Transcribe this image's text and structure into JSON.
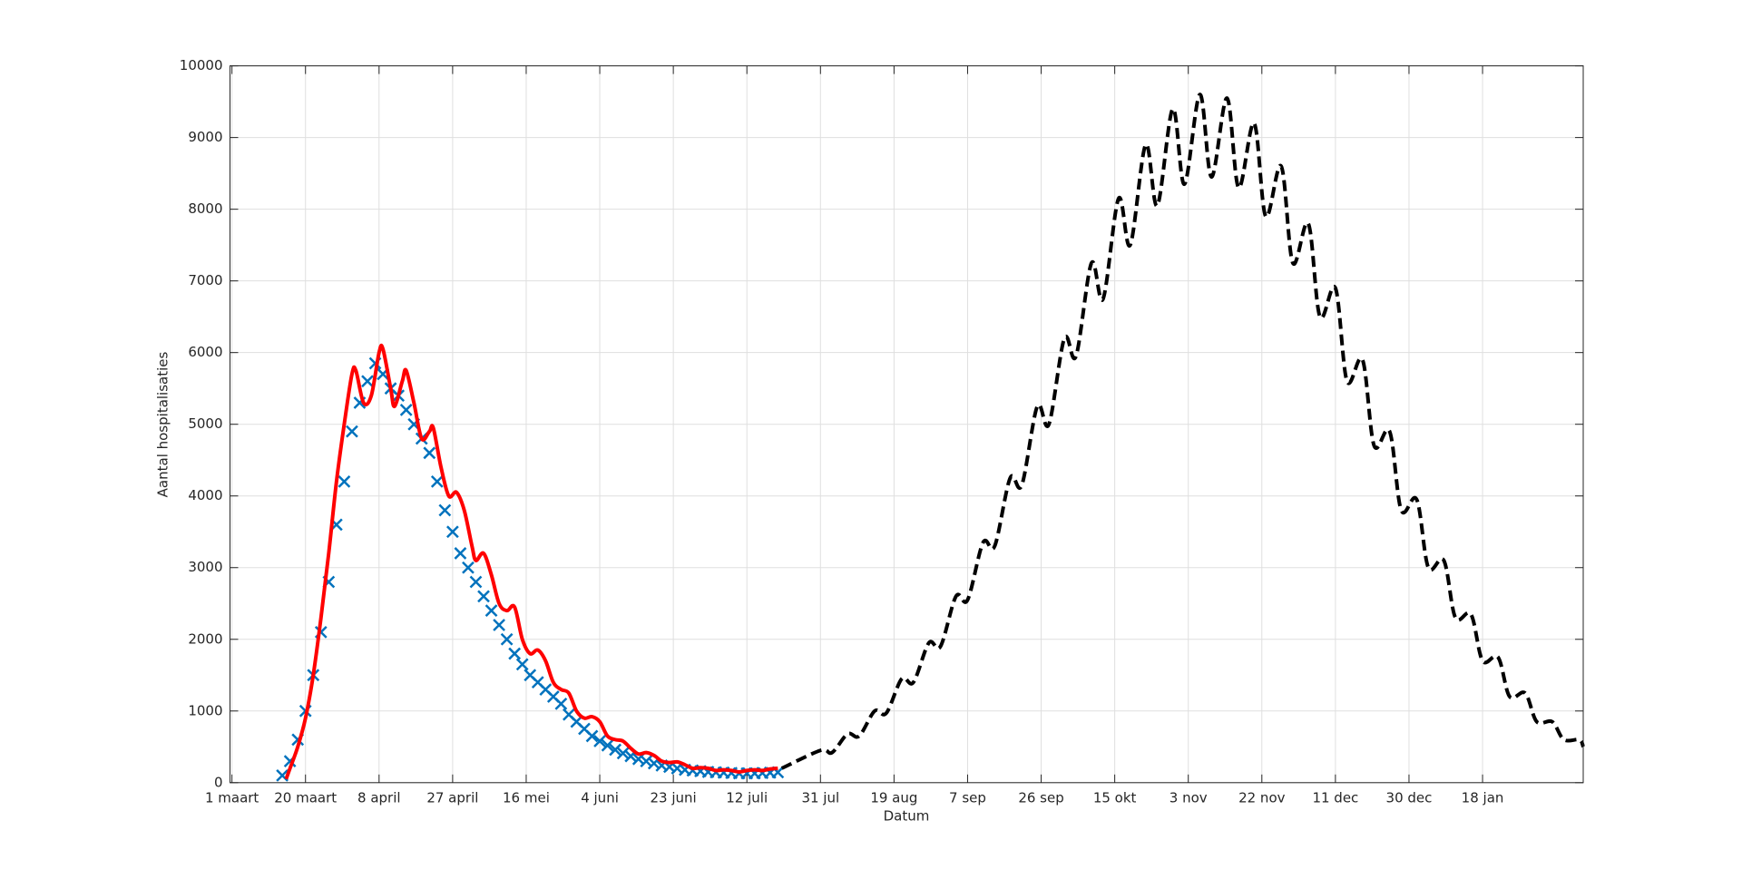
{
  "chart_data": {
    "type": "line",
    "xlabel": "Datum",
    "ylabel": "Aantal hospitalisaties",
    "xlim": [
      -0.5,
      349
    ],
    "ylim": [
      0,
      10000
    ],
    "yticks": [
      0,
      1000,
      2000,
      3000,
      4000,
      5000,
      6000,
      7000,
      8000,
      9000,
      10000
    ],
    "xticks": [
      {
        "value": 0,
        "label": "1 maart"
      },
      {
        "value": 19,
        "label": "20 maart"
      },
      {
        "value": 38,
        "label": "8 april"
      },
      {
        "value": 57,
        "label": "27 april"
      },
      {
        "value": 76,
        "label": "16 mei"
      },
      {
        "value": 95,
        "label": "4 juni"
      },
      {
        "value": 114,
        "label": "23 juni"
      },
      {
        "value": 133,
        "label": "12 juli"
      },
      {
        "value": 152,
        "label": "31 jul"
      },
      {
        "value": 171,
        "label": "19 aug"
      },
      {
        "value": 190,
        "label": "7 sep"
      },
      {
        "value": 209,
        "label": "26 sep"
      },
      {
        "value": 228,
        "label": "15 okt"
      },
      {
        "value": 247,
        "label": "3 nov"
      },
      {
        "value": 266,
        "label": "22 nov"
      },
      {
        "value": 285,
        "label": "11 dec"
      },
      {
        "value": 304,
        "label": "30 dec"
      },
      {
        "value": 323,
        "label": "18 jan"
      }
    ],
    "grid": true,
    "series": [
      {
        "color": "#0072bd",
        "marker": "x",
        "linestyle": "none",
        "x": [
          13,
          15,
          17,
          19,
          21,
          23,
          25,
          27,
          29,
          31,
          33,
          35,
          37,
          39,
          41,
          43,
          45,
          47,
          49,
          51,
          53,
          55,
          57,
          59,
          61,
          63,
          65,
          67,
          69,
          71,
          73,
          75,
          77,
          79,
          81,
          83,
          85,
          87,
          89,
          91,
          93,
          95,
          97,
          99,
          101,
          103,
          105,
          107,
          109,
          111,
          113,
          115,
          117,
          119,
          121,
          123,
          125,
          127,
          129,
          131,
          133,
          135,
          137,
          139,
          141
        ],
        "values": [
          100,
          300,
          600,
          1000,
          1500,
          2100,
          2800,
          3600,
          4200,
          4900,
          5300,
          5600,
          5850,
          5700,
          5500,
          5400,
          5200,
          5000,
          4800,
          4600,
          4200,
          3800,
          3500,
          3200,
          3000,
          2800,
          2600,
          2400,
          2200,
          2000,
          1800,
          1650,
          1500,
          1400,
          1300,
          1200,
          1100,
          950,
          850,
          750,
          650,
          580,
          520,
          460,
          410,
          370,
          330,
          300,
          270,
          240,
          220,
          200,
          180,
          170,
          160,
          150,
          145,
          140,
          135,
          130,
          130,
          130,
          135,
          140,
          145
        ]
      },
      {
        "color": "#ff0000",
        "marker": "none",
        "linestyle": "-",
        "x": [
          14,
          15,
          17,
          19,
          21,
          23,
          25,
          27,
          29,
          31,
          32,
          34,
          36,
          38,
          39,
          41,
          42,
          44,
          45,
          47,
          49,
          51,
          52,
          54,
          56,
          58,
          60,
          62,
          63,
          65,
          67,
          69,
          71,
          73,
          75,
          77,
          79,
          81,
          83,
          85,
          87,
          89,
          91,
          93,
          95,
          97,
          99,
          101,
          103,
          105,
          107,
          109,
          111,
          113,
          115,
          117,
          119,
          121,
          123,
          125,
          127,
          129,
          131,
          133,
          135,
          137,
          139,
          141
        ],
        "values": [
          50,
          200,
          500,
          900,
          1500,
          2300,
          3200,
          4200,
          5000,
          5700,
          5750,
          5300,
          5400,
          6000,
          6050,
          5500,
          5250,
          5600,
          5750,
          5300,
          4800,
          4900,
          4950,
          4400,
          4000,
          4050,
          3800,
          3300,
          3100,
          3200,
          2900,
          2500,
          2400,
          2450,
          2000,
          1800,
          1850,
          1700,
          1400,
          1300,
          1250,
          1000,
          900,
          920,
          850,
          650,
          600,
          580,
          480,
          400,
          420,
          380,
          300,
          280,
          290,
          250,
          200,
          210,
          200,
          170,
          180,
          170,
          150,
          170,
          180,
          170,
          190,
          200
        ]
      },
      {
        "color": "#000000",
        "marker": "none",
        "linestyle": "--",
        "x": [
          142,
          152,
          155,
          159,
          162,
          166,
          169,
          173,
          176,
          180,
          183,
          187,
          190,
          194,
          197,
          201,
          204,
          208,
          211,
          215,
          218,
          222,
          225,
          229,
          232,
          236,
          239,
          243,
          246,
          250,
          253,
          257,
          260,
          264,
          267,
          271,
          274,
          278,
          281,
          285,
          288,
          292,
          295,
          299,
          302,
          306,
          309,
          313,
          316,
          320,
          323,
          327,
          330,
          334,
          337,
          341,
          344,
          348,
          349
        ],
        "values": [
          200,
          450,
          420,
          680,
          650,
          1000,
          970,
          1450,
          1400,
          1950,
          1900,
          2600,
          2550,
          3350,
          3300,
          4250,
          4150,
          5250,
          5000,
          6200,
          5950,
          7250,
          6750,
          8150,
          7500,
          8900,
          8050,
          9400,
          8350,
          9600,
          8450,
          9550,
          8300,
          9200,
          7900,
          8600,
          7250,
          7800,
          6500,
          6900,
          5600,
          5900,
          4700,
          4900,
          3800,
          3950,
          3000,
          3100,
          2300,
          2350,
          1700,
          1750,
          1200,
          1250,
          850,
          850,
          600,
          600,
          500
        ]
      }
    ]
  }
}
